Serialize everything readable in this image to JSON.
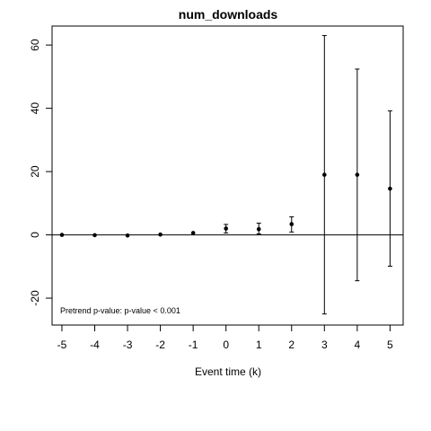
{
  "chart_data": {
    "type": "scatter",
    "title": "num_downloads",
    "xlabel": "Event time (k)",
    "ylabel": "",
    "annotation": "Pretrend p-value: p-value < 0.001",
    "xlim": [
      -5.3,
      5.4
    ],
    "ylim": [
      -28.5,
      66
    ],
    "x_ticks": [
      -5,
      -4,
      -3,
      -2,
      -1,
      0,
      1,
      2,
      3,
      4,
      5
    ],
    "y_ticks": [
      -20,
      0,
      20,
      40,
      60
    ],
    "reference_line_y": 0,
    "grid": false,
    "points": [
      {
        "x": -5,
        "y": 0.0,
        "lower": 0.0,
        "upper": 0.0
      },
      {
        "x": -4,
        "y": -0.1,
        "lower": -0.1,
        "upper": -0.1
      },
      {
        "x": -3,
        "y": -0.2,
        "lower": -0.2,
        "upper": -0.2
      },
      {
        "x": -2,
        "y": 0.1,
        "lower": 0.1,
        "upper": 0.1
      },
      {
        "x": -1,
        "y": 0.6,
        "lower": 0.6,
        "upper": 0.6
      },
      {
        "x": 0,
        "y": 2.0,
        "lower": 0.6,
        "upper": 3.3
      },
      {
        "x": 1,
        "y": 1.8,
        "lower": 0.3,
        "upper": 3.7
      },
      {
        "x": 2,
        "y": 3.4,
        "lower": 0.9,
        "upper": 5.7
      },
      {
        "x": 3,
        "y": 19.0,
        "lower": -25.0,
        "upper": 63.0
      },
      {
        "x": 4,
        "y": 19.0,
        "lower": -14.5,
        "upper": 52.4
      },
      {
        "x": 5,
        "y": 14.6,
        "lower": -9.9,
        "upper": 39.2
      }
    ]
  }
}
